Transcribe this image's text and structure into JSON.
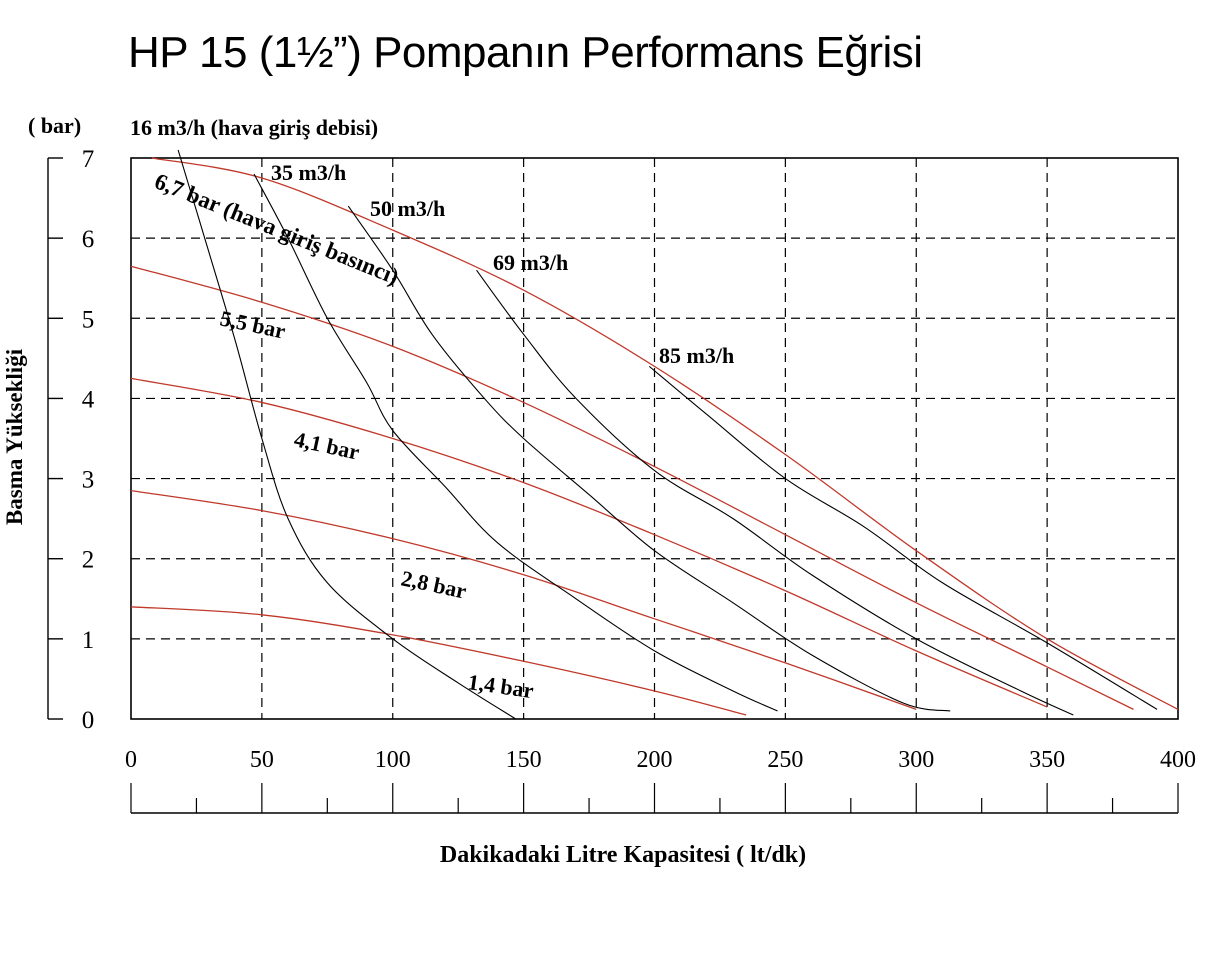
{
  "page": {
    "title": "HP 15 (1½”) Pompanın Performans Eğrisi"
  },
  "chart_data": {
    "type": "line",
    "title": "HP 15 (1½”) Pompanın Performans Eğrisi",
    "xlabel": "Dakikadaki Litre Kapasitesi ( lt/dk)",
    "ylabel": "Basma Yüksekliği",
    "yunit": "( bar)",
    "xlim": [
      0,
      400
    ],
    "ylim": [
      0,
      7
    ],
    "xticks": [
      "0",
      "50",
      "100",
      "150",
      "200",
      "250",
      "300",
      "350",
      "400"
    ],
    "yticks": [
      "0",
      "1",
      "2",
      "3",
      "4",
      "5",
      "6",
      "7"
    ],
    "grid": true,
    "pressure_series": [
      {
        "name": "6,7 bar (hava giriş basıncı)",
        "color": "#c0392b",
        "points": [
          [
            8,
            7.0
          ],
          [
            50,
            6.75
          ],
          [
            100,
            6.1
          ],
          [
            150,
            5.35
          ],
          [
            200,
            4.4
          ],
          [
            250,
            3.3
          ],
          [
            300,
            2.1
          ],
          [
            350,
            1.0
          ],
          [
            400,
            0.12
          ]
        ]
      },
      {
        "name": "5,5 bar",
        "color": "#c0392b",
        "points": [
          [
            0,
            5.65
          ],
          [
            50,
            5.2
          ],
          [
            100,
            4.65
          ],
          [
            150,
            3.95
          ],
          [
            200,
            3.15
          ],
          [
            250,
            2.3
          ],
          [
            300,
            1.45
          ],
          [
            350,
            0.65
          ],
          [
            383,
            0.12
          ]
        ]
      },
      {
        "name": "4,1 bar",
        "color": "#c0392b",
        "points": [
          [
            0,
            4.25
          ],
          [
            50,
            3.95
          ],
          [
            100,
            3.5
          ],
          [
            150,
            2.95
          ],
          [
            200,
            2.3
          ],
          [
            250,
            1.6
          ],
          [
            300,
            0.85
          ],
          [
            350,
            0.15
          ]
        ]
      },
      {
        "name": "2,8 bar",
        "color": "#c0392b",
        "points": [
          [
            0,
            2.85
          ],
          [
            50,
            2.6
          ],
          [
            100,
            2.25
          ],
          [
            150,
            1.8
          ],
          [
            200,
            1.25
          ],
          [
            250,
            0.7
          ],
          [
            300,
            0.12
          ]
        ]
      },
      {
        "name": "1,4 bar",
        "color": "#c0392b",
        "points": [
          [
            0,
            1.4
          ],
          [
            50,
            1.3
          ],
          [
            100,
            1.05
          ],
          [
            150,
            0.72
          ],
          [
            200,
            0.35
          ],
          [
            235,
            0.05
          ]
        ]
      }
    ],
    "air_flow_series": [
      {
        "name": "16 m3/h (hava giriş debisi)",
        "color": "#000000",
        "points": [
          [
            18,
            7.1
          ],
          [
            30,
            5.8
          ],
          [
            40,
            4.7
          ],
          [
            50,
            3.5
          ],
          [
            60,
            2.5
          ],
          [
            75,
            1.7
          ],
          [
            100,
            1.0
          ],
          [
            125,
            0.45
          ],
          [
            147,
            0.0
          ]
        ]
      },
      {
        "name": "35 m3/h",
        "color": "#000000",
        "points": [
          [
            47,
            6.8
          ],
          [
            60,
            6.0
          ],
          [
            75,
            5.0
          ],
          [
            90,
            4.2
          ],
          [
            100,
            3.6
          ],
          [
            120,
            2.9
          ],
          [
            140,
            2.2
          ],
          [
            170,
            1.5
          ],
          [
            200,
            0.85
          ],
          [
            230,
            0.35
          ],
          [
            247,
            0.1
          ]
        ]
      },
      {
        "name": "50 m3/h",
        "color": "#000000",
        "points": [
          [
            83,
            6.4
          ],
          [
            100,
            5.6
          ],
          [
            115,
            4.8
          ],
          [
            135,
            4.0
          ],
          [
            150,
            3.5
          ],
          [
            175,
            2.8
          ],
          [
            200,
            2.1
          ],
          [
            230,
            1.45
          ],
          [
            260,
            0.8
          ],
          [
            295,
            0.2
          ],
          [
            313,
            0.1
          ]
        ]
      },
      {
        "name": "69 m3/h",
        "color": "#000000",
        "points": [
          [
            132,
            5.6
          ],
          [
            150,
            4.8
          ],
          [
            170,
            4.0
          ],
          [
            200,
            3.1
          ],
          [
            230,
            2.5
          ],
          [
            260,
            1.8
          ],
          [
            300,
            1.0
          ],
          [
            340,
            0.35
          ],
          [
            360,
            0.05
          ]
        ]
      },
      {
        "name": "85 m3/h",
        "color": "#000000",
        "points": [
          [
            198,
            4.4
          ],
          [
            220,
            3.8
          ],
          [
            250,
            3.0
          ],
          [
            280,
            2.4
          ],
          [
            310,
            1.7
          ],
          [
            350,
            0.95
          ],
          [
            392,
            0.12
          ]
        ]
      }
    ],
    "annotations": [
      {
        "text": "16 m3/h (hava giriş debisi)"
      },
      {
        "text": "35 m3/h"
      },
      {
        "text": "50 m3/h"
      },
      {
        "text": "69 m3/h"
      },
      {
        "text": "85 m3/h"
      },
      {
        "text": "6,7 bar (hava giriş basıncı)"
      },
      {
        "text": "5,5 bar"
      },
      {
        "text": "4,1 bar"
      },
      {
        "text": "2,8 bar"
      },
      {
        "text": "1,4 bar"
      }
    ],
    "legend": "none (inline labels)"
  }
}
